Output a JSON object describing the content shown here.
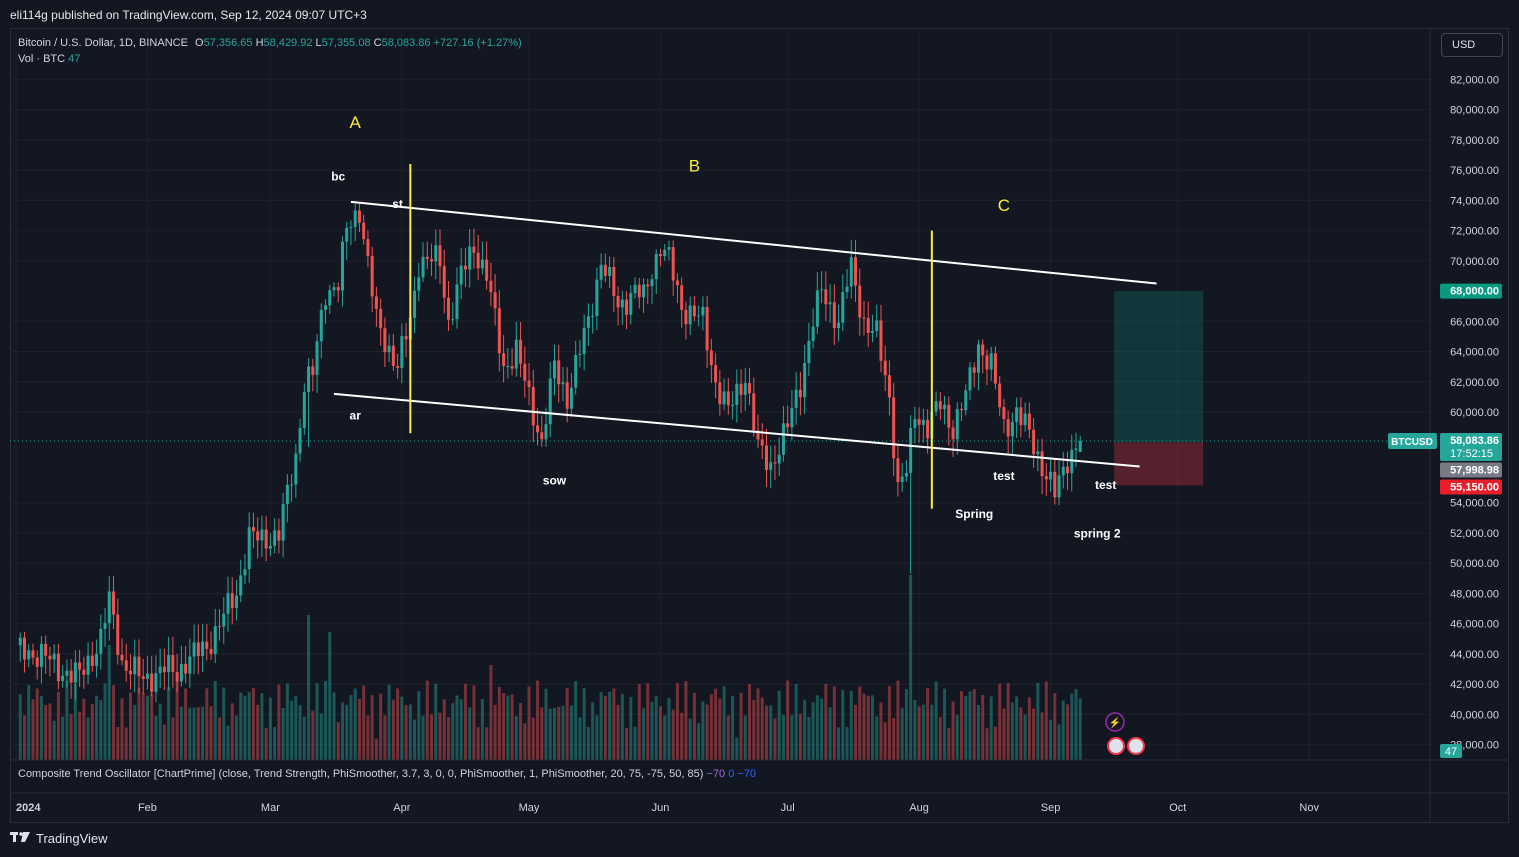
{
  "header": {
    "published": "eli114g published on TradingView.com, Sep 12, 2024 09:07 UTC+3"
  },
  "legend": {
    "symbol": "Bitcoin / U.S. Dollar, 1D, BINANCE",
    "o_label": "O",
    "o": "57,356.65",
    "h_label": "H",
    "h": "58,429.92",
    "l_label": "L",
    "l": "57,355.08",
    "c_label": "C",
    "c": "58,083.86",
    "change": "+727.16 (+1.27%)",
    "vol_label": "Vol · BTC",
    "vol": "47"
  },
  "currency_button": "USD",
  "oscillator": {
    "label": "Composite Trend Oscillator [ChartPrime] (close, Trend Strength, PhiSmoother, 3.7, 3, 0, 0, PhiSmoother, 1, PhiSmoother, 20, 75, -75, 50, 85)",
    "v1": "−70",
    "v2": "0",
    "v3": "−70"
  },
  "footer": {
    "brand": "TradingView"
  },
  "colors": {
    "up": "#26a69a",
    "down": "#ef5350",
    "background": "#131722",
    "wave_line": "#ffeb3b",
    "channel": "#ffffff"
  },
  "chart_data": {
    "type": "candlestick",
    "symbol": "BTCUSD",
    "timeframe": "1D",
    "y_axis": {
      "ticks": [
        "82,000.00",
        "80,000.00",
        "78,000.00",
        "76,000.00",
        "74,000.00",
        "72,000.00",
        "70,000.00",
        "66,000.00",
        "64,000.00",
        "62,000.00",
        "60,000.00",
        "54,000.00",
        "52,000.00",
        "50,000.00",
        "48,000.00",
        "46,000.00",
        "44,000.00",
        "42,000.00",
        "40,000.00",
        "38,000.00"
      ],
      "tick_values": [
        82000,
        80000,
        78000,
        76000,
        74000,
        72000,
        70000,
        66000,
        64000,
        62000,
        60000,
        54000,
        52000,
        50000,
        48000,
        46000,
        44000,
        42000,
        40000,
        38000
      ],
      "range": [
        37000,
        83500
      ]
    },
    "x_axis": {
      "ticks": [
        "2024",
        "Feb",
        "Mar",
        "Apr",
        "May",
        "Jun",
        "Jul",
        "Aug",
        "Sep",
        "Oct",
        "Nov"
      ],
      "tick_day_index": [
        0,
        31,
        60,
        91,
        121,
        152,
        182,
        213,
        244,
        274,
        305
      ]
    },
    "price_anchors": [
      [
        0,
        44200
      ],
      [
        6,
        44000
      ],
      [
        10,
        43000
      ],
      [
        15,
        42500
      ],
      [
        20,
        45000
      ],
      [
        22,
        47500
      ],
      [
        25,
        43500
      ],
      [
        30,
        42300
      ],
      [
        35,
        43000
      ],
      [
        38,
        42800
      ],
      [
        40,
        43500
      ],
      [
        45,
        44500
      ],
      [
        49,
        46500
      ],
      [
        52,
        48000
      ],
      [
        55,
        51800
      ],
      [
        58,
        51500
      ],
      [
        62,
        52000
      ],
      [
        66,
        57000
      ],
      [
        68,
        62000
      ],
      [
        70,
        62500
      ],
      [
        73,
        68000
      ],
      [
        76,
        68500
      ],
      [
        78,
        72000
      ],
      [
        81,
        73500
      ],
      [
        85,
        66000
      ],
      [
        90,
        63000
      ],
      [
        93,
        66000
      ],
      [
        95,
        70000
      ],
      [
        100,
        70000
      ],
      [
        102,
        66000
      ],
      [
        105,
        69000
      ],
      [
        108,
        71000
      ],
      [
        111,
        69000
      ],
      [
        115,
        63000
      ],
      [
        118,
        64000
      ],
      [
        120,
        62000
      ],
      [
        124,
        58000
      ],
      [
        127,
        63000
      ],
      [
        130,
        61000
      ],
      [
        135,
        66000
      ],
      [
        138,
        70000
      ],
      [
        142,
        67000
      ],
      [
        146,
        68000
      ],
      [
        148,
        67500
      ],
      [
        150,
        69500
      ],
      [
        152,
        71000
      ],
      [
        154,
        70000
      ],
      [
        157,
        67000
      ],
      [
        162,
        66000
      ],
      [
        165,
        62000
      ],
      [
        168,
        60000
      ],
      [
        172,
        62500
      ],
      [
        175,
        57500
      ],
      [
        178,
        56500
      ],
      [
        182,
        59000
      ],
      [
        185,
        62000
      ],
      [
        188,
        66000
      ],
      [
        190,
        68000
      ],
      [
        194,
        66000
      ],
      [
        196,
        68500
      ],
      [
        197,
        69500
      ],
      [
        200,
        66000
      ],
      [
        203,
        65000
      ],
      [
        206,
        61000
      ],
      [
        208,
        55000
      ],
      [
        210,
        56000
      ],
      [
        212,
        60000
      ],
      [
        215,
        59000
      ],
      [
        218,
        60500
      ],
      [
        221,
        59000
      ],
      [
        224,
        61000
      ],
      [
        227,
        64500
      ],
      [
        230,
        63000
      ],
      [
        233,
        59000
      ],
      [
        236,
        60000
      ],
      [
        239,
        58500
      ],
      [
        242,
        56500
      ],
      [
        245,
        54500
      ],
      [
        248,
        57000
      ],
      [
        251,
        58083.86
      ]
    ],
    "last_day_index": 251,
    "ohlc_last": {
      "open": 57356.65,
      "high": 58429.92,
      "low": 57355.08,
      "close": 58083.86,
      "change": 727.16,
      "change_pct": 1.27
    },
    "price_labels": [
      {
        "name": "BTCUSD",
        "price": 58083.86,
        "text": "58,083.86",
        "countdown": "17:52:15",
        "color": "#26a69a"
      },
      {
        "name": "target",
        "price": 68000,
        "text": "68,000.00",
        "color": "#089981"
      },
      {
        "name": "entry",
        "price": 57998.98,
        "text": "57,998.98",
        "color": "#787b86"
      },
      {
        "name": "stop",
        "price": 55150,
        "text": "55,150.00",
        "color": "#e91e2b"
      }
    ],
    "ticker_label": "BTCUSD",
    "volume_label": "47",
    "annotations": [
      {
        "text": "A",
        "day": 80,
        "price": 78800,
        "color": "#ffeb3b",
        "kind": "wave"
      },
      {
        "text": "B",
        "day": 160,
        "price": 75900,
        "color": "#ffeb3b",
        "kind": "wave"
      },
      {
        "text": "C",
        "day": 233,
        "price": 73300,
        "color": "#ffeb3b",
        "kind": "wave"
      },
      {
        "text": "bc",
        "day": 76,
        "price": 75300,
        "color": "#ffffff"
      },
      {
        "text": "st",
        "day": 90,
        "price": 73500,
        "color": "#ffffff"
      },
      {
        "text": "ar",
        "day": 80,
        "price": 59500,
        "color": "#ffffff"
      },
      {
        "text": "sow",
        "day": 127,
        "price": 55200,
        "color": "#ffffff"
      },
      {
        "text": "test",
        "day": 233,
        "price": 55500,
        "color": "#ffffff"
      },
      {
        "text": "Spring",
        "day": 226,
        "price": 53000,
        "color": "#ffffff"
      },
      {
        "text": "test",
        "day": 257,
        "price": 54900,
        "color": "#ffffff"
      },
      {
        "text": "spring 2",
        "day": 255,
        "price": 51700,
        "color": "#ffffff"
      }
    ],
    "channel_upper": [
      [
        79,
        73900
      ],
      [
        269,
        68500
      ]
    ],
    "channel_lower": [
      [
        75,
        61200
      ],
      [
        265,
        56400
      ]
    ],
    "vertical_markers": [
      {
        "day": 93,
        "from": 58600,
        "to": 76400
      },
      {
        "day": 216,
        "from": 53600,
        "to": 72000
      }
    ],
    "position_box": {
      "start_day": 259,
      "end_day": 280,
      "entry": 57998.98,
      "target": 68000,
      "stop": 55150
    }
  }
}
